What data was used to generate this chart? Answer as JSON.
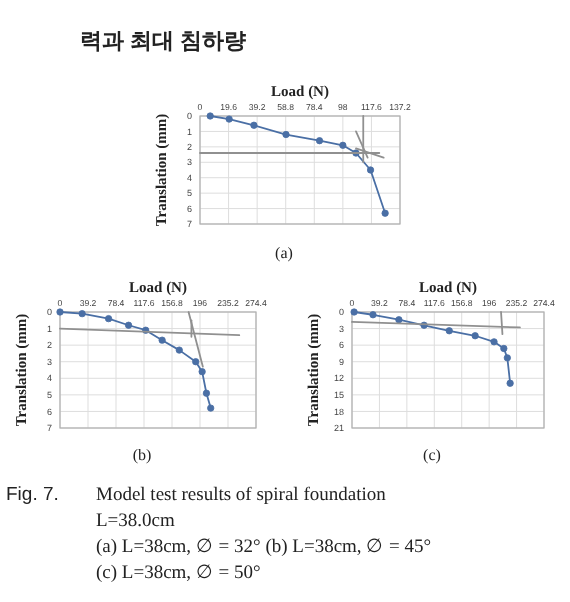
{
  "chart_data": [
    {
      "type": "other",
      "title": "력과 최대 침하량",
      "annotations": [
        "Fig. 7.",
        "Model test results of spiral foundation",
        "L=38.0cm",
        "(a)  L=38cm, ∅ = 32° (b)  L=38cm, ∅ = 45°",
        "(c)  L=38cm, ∅ = 50°"
      ]
    },
    {
      "type": "line",
      "xlabel": "Load (N)",
      "ylabel": "Translation (mm)",
      "annotations": [
        "(a)"
      ],
      "xlim": [
        0,
        137.2
      ],
      "ylim": [
        7,
        0
      ],
      "xticks": [
        0,
        19.6,
        39.2,
        58.8,
        78.4,
        98,
        117.6,
        137.2
      ],
      "yticks": [
        0,
        1,
        2,
        3,
        4,
        5,
        6,
        7
      ],
      "grid": true,
      "marker": "circle",
      "series": [
        {
          "color": "#4a6fa5",
          "x": [
            7,
            20,
            37,
            59,
            82,
            98,
            107,
            117,
            127
          ],
          "values": [
            0,
            0.2,
            0.6,
            1.2,
            1.6,
            1.9,
            2.4,
            3.5,
            6.3
          ]
        },
        {
          "color": "#909090",
          "marker": "none",
          "x": [
            0,
            123
          ],
          "values": [
            2.4,
            2.4
          ]
        },
        {
          "color": "#909090",
          "marker": "none",
          "x": [
            107,
            126
          ],
          "values": [
            2.1,
            2.7
          ]
        },
        {
          "color": "#909090",
          "marker": "none",
          "x": [
            107,
            115
          ],
          "values": [
            1,
            2.7
          ]
        },
        {
          "color": "#909090",
          "marker": "none",
          "x": [
            112,
            112
          ],
          "values": [
            0,
            3
          ]
        }
      ]
    },
    {
      "type": "line",
      "xlabel": "Load (N)",
      "ylabel": "Translation (mm)",
      "annotations": [
        "(b)"
      ],
      "xlim": [
        0,
        274.4
      ],
      "ylim": [
        7,
        0
      ],
      "xticks": [
        0,
        39.2,
        78.4,
        117.6,
        156.8,
        196,
        235.2,
        274.4
      ],
      "yticks": [
        0,
        1,
        2,
        3,
        4,
        5,
        6,
        7
      ],
      "grid": true,
      "marker": "circle",
      "series": [
        {
          "color": "#4a6fa5",
          "x": [
            0,
            31,
            68,
            96,
            120,
            143,
            167,
            190,
            199,
            205,
            211
          ],
          "values": [
            0,
            0.1,
            0.4,
            0.8,
            1.1,
            1.7,
            2.3,
            3,
            3.6,
            4.9,
            5.8
          ]
        },
        {
          "color": "#909090",
          "marker": "none",
          "x": [
            0,
            251
          ],
          "values": [
            1,
            1.4
          ]
        },
        {
          "color": "#909090",
          "marker": "none",
          "x": [
            180,
            200
          ],
          "values": [
            0,
            3.3
          ]
        },
        {
          "color": "#909090",
          "marker": "none",
          "x": [
            184,
            184
          ],
          "values": [
            0.5,
            1.5
          ]
        }
      ]
    },
    {
      "type": "line",
      "xlabel": "Load (N)",
      "ylabel": "Translation (mm)",
      "annotations": [
        "(c)"
      ],
      "xlim": [
        0,
        274.4
      ],
      "ylim": [
        21,
        0
      ],
      "xticks": [
        0,
        39.2,
        78.4,
        117.6,
        156.8,
        196,
        235.2,
        274.4
      ],
      "yticks": [
        0,
        3,
        6,
        9,
        12,
        15,
        18,
        21
      ],
      "grid": true,
      "marker": "circle",
      "series": [
        {
          "color": "#4a6fa5",
          "x": [
            3,
            30,
            67,
            103,
            139,
            176,
            203,
            217,
            222,
            226
          ],
          "values": [
            0,
            0.5,
            1.4,
            2.4,
            3.4,
            4.3,
            5.4,
            6.6,
            8.3,
            12.9
          ]
        },
        {
          "color": "#909090",
          "marker": "none",
          "x": [
            0,
            240
          ],
          "values": [
            1.8,
            2.8
          ]
        },
        {
          "color": "#909090",
          "marker": "none",
          "x": [
            213,
            215
          ],
          "values": [
            0,
            4
          ]
        }
      ]
    }
  ]
}
